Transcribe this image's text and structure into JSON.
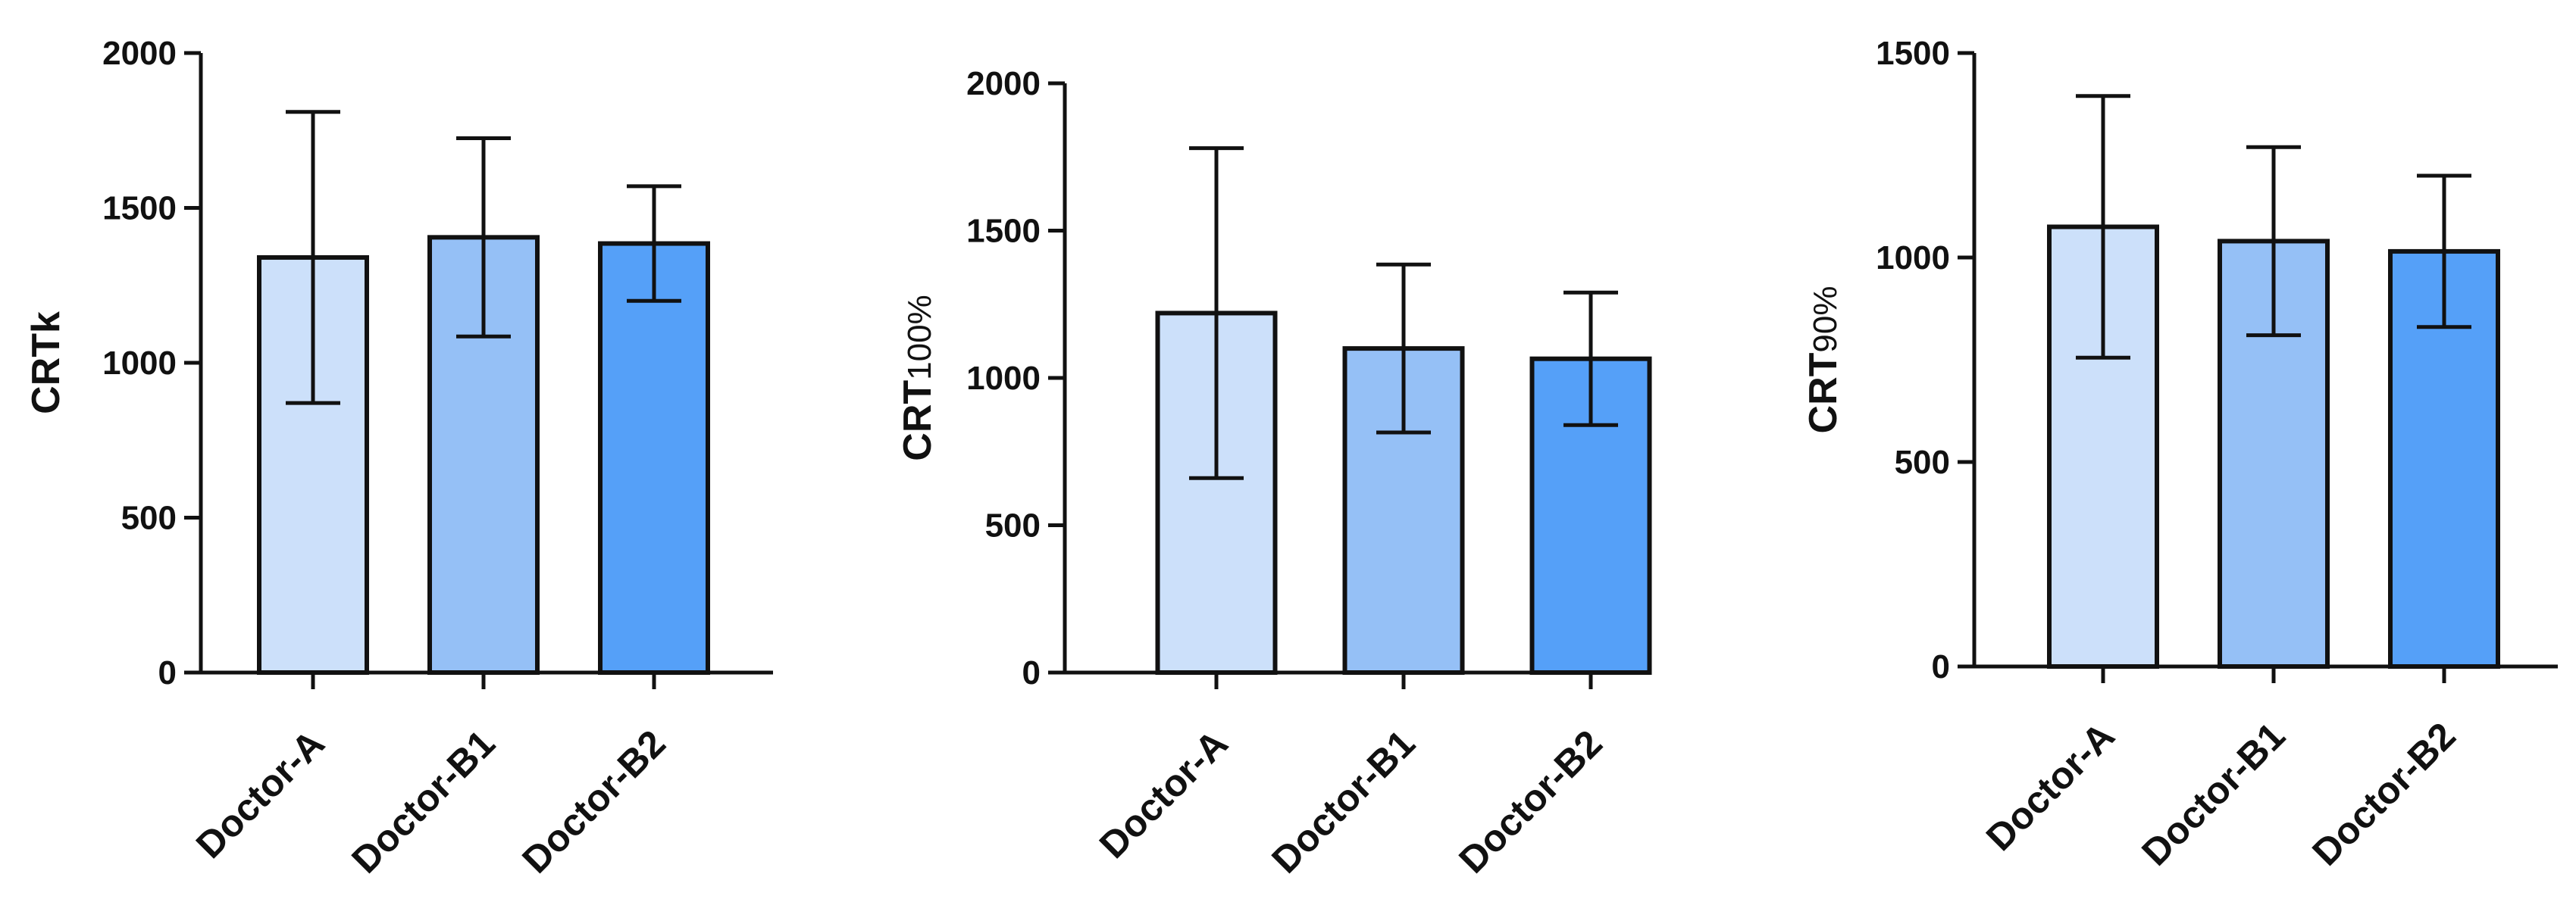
{
  "chart_data": [
    {
      "type": "bar",
      "ylabel_main": "CRTk",
      "ylabel_sub": "",
      "categories": [
        "Doctor-A",
        "Doctor-B1",
        "Doctor-B2"
      ],
      "values": [
        1340,
        1405,
        1385
      ],
      "errors": [
        470,
        320,
        185
      ],
      "ylim": [
        0,
        2000
      ],
      "yticks": [
        0,
        500,
        1000,
        1500,
        2000
      ],
      "bar_colors": [
        "#cce0fa",
        "#95c0f6",
        "#55a0f8"
      ]
    },
    {
      "type": "bar",
      "ylabel_main": "CRT",
      "ylabel_sub": "100%",
      "categories": [
        "Doctor-A",
        "Doctor-B1",
        "Doctor-B2"
      ],
      "values": [
        1220,
        1100,
        1065
      ],
      "errors": [
        560,
        285,
        225
      ],
      "ylim": [
        0,
        2000
      ],
      "yticks": [
        0,
        500,
        1000,
        1500,
        2000
      ],
      "bar_colors": [
        "#cce0fa",
        "#95c0f6",
        "#55a0f8"
      ]
    },
    {
      "type": "bar",
      "ylabel_main": "CRT",
      "ylabel_sub": "90%",
      "categories": [
        "Doctor-A",
        "Doctor-B1",
        "Doctor-B2"
      ],
      "values": [
        1075,
        1040,
        1015
      ],
      "errors": [
        320,
        230,
        185
      ],
      "ylim": [
        0,
        1500
      ],
      "yticks": [
        0,
        500,
        1000,
        1500
      ],
      "bar_colors": [
        "#cce0fa",
        "#95c0f6",
        "#55a0f8"
      ]
    }
  ]
}
